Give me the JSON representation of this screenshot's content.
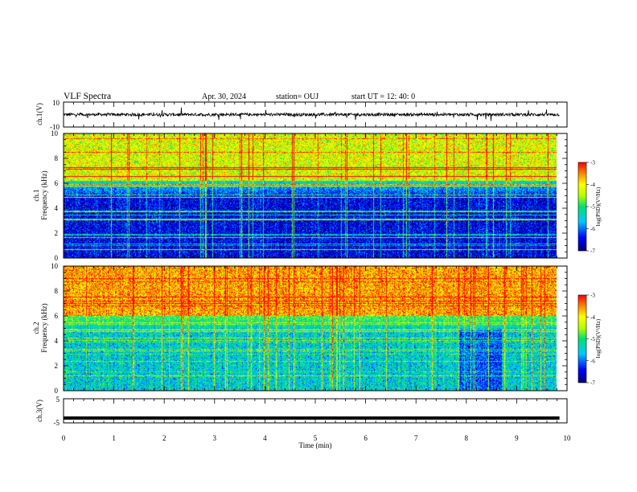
{
  "header": {
    "title": "VLF Spectra",
    "date": "Apr. 30, 2024",
    "station": "station= OUJ",
    "start": "start  UT  =    12: 40: 0"
  },
  "chart_data": [
    {
      "type": "line",
      "name": "ch1-waveform",
      "ylabel": "ch.1(V)",
      "ylim": [
        -10,
        10
      ],
      "yticklabels": [
        "10",
        "-10"
      ],
      "x_range_min": [
        0,
        9.85
      ],
      "baseline_v": 0,
      "color": "#000000"
    },
    {
      "type": "heatmap",
      "name": "ch1-spectrogram",
      "ylabel": "ch.1",
      "ylabel2": "Frequency (kHz)",
      "xlim_min": [
        0,
        10
      ],
      "data_x_extent_min": [
        0,
        9.85
      ],
      "ylim_khz": [
        0,
        10
      ],
      "yticks": [
        0,
        2,
        4,
        6,
        8,
        10
      ],
      "colorbar": {
        "label": "log(PSD)(V²/Hz)",
        "range": [
          -7,
          -3
        ],
        "ticks": [
          "-3",
          "-4",
          "-5",
          "-6",
          "-7"
        ]
      },
      "description_levels": {
        "above_6khz": -3.8,
        "4_to_6khz": -6.5,
        "below_4khz": -6.8
      }
    },
    {
      "type": "heatmap",
      "name": "ch2-spectrogram",
      "ylabel": "ch.2",
      "ylabel2": "Frequency (kHz)",
      "xlim_min": [
        0,
        10
      ],
      "data_x_extent_min": [
        0,
        9.85
      ],
      "ylim_khz": [
        0,
        10
      ],
      "yticks": [
        0,
        2,
        4,
        6,
        8,
        10
      ],
      "colorbar": {
        "label": "log(PSD)(V²/Hz)",
        "range": [
          -7,
          -3
        ],
        "ticks": [
          "-3",
          "-4",
          "-5",
          "-6",
          "-7"
        ]
      },
      "description_levels": {
        "above_6khz": -3.2,
        "below_5khz": -5.8
      }
    },
    {
      "type": "line",
      "name": "ch3-waveform",
      "ylabel": "ch.3(V)",
      "ylim": [
        -5,
        5
      ],
      "yticklabels": [
        "5",
        "-5"
      ],
      "x_range_min": [
        0,
        9.85
      ],
      "value_v": -3,
      "color": "#000000"
    }
  ],
  "x_axis": {
    "label": "Time (min)",
    "ticks": [
      "0",
      "1",
      "2",
      "3",
      "4",
      "5",
      "6",
      "7",
      "8",
      "9",
      "10"
    ]
  }
}
